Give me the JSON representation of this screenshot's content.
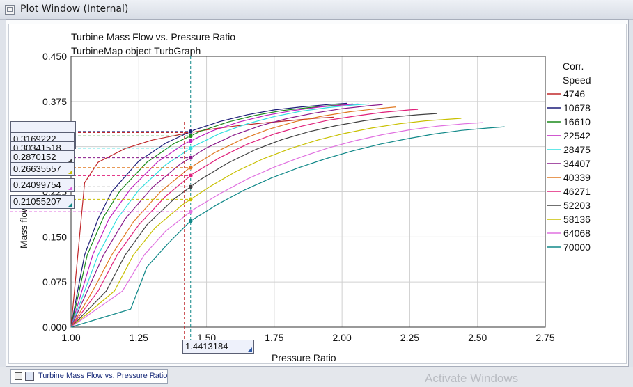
{
  "window": {
    "title": "Plot Window (Internal)"
  },
  "tab": {
    "label": "Turbine Mass Flow vs. Pressure Ratio"
  },
  "watermark": "Activate Windows",
  "legend": {
    "title_line1": "Corr.",
    "title_line2": "Speed"
  },
  "colors": {
    "frame_bg": "#fbfcfd",
    "plot_bg": "#ffffff",
    "grid": "#d0d0d0"
  },
  "cursor": {
    "x_readout": "1.4413184",
    "y_readouts": [
      {
        "text": "0.3169222",
        "color": "#b050d0"
      },
      {
        "text": "0.30341518",
        "color": "#444444"
      },
      {
        "text": "0.2870152",
        "color": "#444444"
      },
      {
        "text": "0.26635557",
        "color": "#c8c000"
      },
      {
        "text": "0.24099754",
        "color": "#e060e0"
      },
      {
        "text": "0.21055207",
        "color": "#108888"
      }
    ]
  },
  "chart_data": {
    "type": "line",
    "title": "Turbine Mass Flow vs. Pressure Ratio",
    "subtitle": "TurbineMap object TurbGraph",
    "xlabel": "Pressure Ratio",
    "ylabel": "Mass flow",
    "xlim": [
      1.0,
      2.75
    ],
    "ylim": [
      0.0,
      0.45
    ],
    "xticks": [
      "1.00",
      "1.25",
      "1.50",
      "1.75",
      "2.00",
      "2.25",
      "2.50",
      "2.75"
    ],
    "yticks": [
      "0.000",
      "0.075",
      "0.150",
      "0.225",
      "0.300",
      "0.375",
      "0.450"
    ],
    "grid": true,
    "legend_position": "right",
    "series": [
      {
        "name": "4746",
        "color": "#c0282a",
        "points": [
          [
            1.0,
            0.0
          ],
          [
            1.05,
            0.24
          ],
          [
            1.1,
            0.274
          ],
          [
            1.2,
            0.297
          ],
          [
            1.3,
            0.311
          ],
          [
            1.4,
            0.32
          ],
          [
            1.5,
            0.328
          ],
          [
            1.6,
            0.334
          ],
          [
            1.7,
            0.339
          ],
          [
            1.8,
            0.343
          ],
          [
            1.9,
            0.347
          ],
          [
            1.97,
            0.349
          ]
        ]
      },
      {
        "name": "10678",
        "color": "#1c1c78",
        "points": [
          [
            1.0,
            0.0
          ],
          [
            1.02,
            0.05
          ],
          [
            1.05,
            0.12
          ],
          [
            1.1,
            0.18
          ],
          [
            1.15,
            0.225
          ],
          [
            1.25,
            0.276
          ],
          [
            1.35,
            0.306
          ],
          [
            1.45,
            0.327
          ],
          [
            1.55,
            0.342
          ],
          [
            1.65,
            0.353
          ],
          [
            1.75,
            0.361
          ],
          [
            1.85,
            0.366
          ],
          [
            1.95,
            0.37
          ],
          [
            2.02,
            0.372
          ]
        ]
      },
      {
        "name": "16610",
        "color": "#1a8a1a",
        "points": [
          [
            1.0,
            0.0
          ],
          [
            1.03,
            0.06
          ],
          [
            1.06,
            0.12
          ],
          [
            1.12,
            0.183
          ],
          [
            1.18,
            0.226
          ],
          [
            1.28,
            0.274
          ],
          [
            1.38,
            0.305
          ],
          [
            1.48,
            0.326
          ],
          [
            1.58,
            0.341
          ],
          [
            1.68,
            0.352
          ],
          [
            1.78,
            0.36
          ],
          [
            1.88,
            0.365
          ],
          [
            1.98,
            0.369
          ],
          [
            2.04,
            0.371
          ]
        ]
      },
      {
        "name": "22542",
        "color": "#c020c0",
        "points": [
          [
            1.0,
            0.0
          ],
          [
            1.04,
            0.06
          ],
          [
            1.08,
            0.12
          ],
          [
            1.14,
            0.18
          ],
          [
            1.22,
            0.23
          ],
          [
            1.32,
            0.275
          ],
          [
            1.42,
            0.305
          ],
          [
            1.52,
            0.326
          ],
          [
            1.62,
            0.341
          ],
          [
            1.72,
            0.352
          ],
          [
            1.82,
            0.36
          ],
          [
            1.92,
            0.366
          ],
          [
            2.0,
            0.369
          ],
          [
            2.06,
            0.371
          ]
        ]
      },
      {
        "name": "28475",
        "color": "#30e0e0",
        "points": [
          [
            1.0,
            0.0
          ],
          [
            1.05,
            0.06
          ],
          [
            1.1,
            0.12
          ],
          [
            1.17,
            0.18
          ],
          [
            1.25,
            0.228
          ],
          [
            1.35,
            0.27
          ],
          [
            1.45,
            0.3
          ],
          [
            1.55,
            0.322
          ],
          [
            1.65,
            0.338
          ],
          [
            1.75,
            0.35
          ],
          [
            1.85,
            0.359
          ],
          [
            1.95,
            0.365
          ],
          [
            2.04,
            0.369
          ],
          [
            2.1,
            0.371
          ]
        ]
      },
      {
        "name": "34407",
        "color": "#8a1a8a",
        "points": [
          [
            1.0,
            0.0
          ],
          [
            1.06,
            0.06
          ],
          [
            1.12,
            0.12
          ],
          [
            1.2,
            0.18
          ],
          [
            1.3,
            0.232
          ],
          [
            1.4,
            0.27
          ],
          [
            1.5,
            0.298
          ],
          [
            1.6,
            0.319
          ],
          [
            1.7,
            0.335
          ],
          [
            1.8,
            0.347
          ],
          [
            1.9,
            0.356
          ],
          [
            2.0,
            0.363
          ],
          [
            2.1,
            0.368
          ],
          [
            2.15,
            0.37
          ]
        ]
      },
      {
        "name": "40339",
        "color": "#e07820",
        "points": [
          [
            1.0,
            0.0
          ],
          [
            1.08,
            0.06
          ],
          [
            1.15,
            0.12
          ],
          [
            1.23,
            0.175
          ],
          [
            1.33,
            0.225
          ],
          [
            1.43,
            0.262
          ],
          [
            1.53,
            0.29
          ],
          [
            1.63,
            0.312
          ],
          [
            1.73,
            0.329
          ],
          [
            1.83,
            0.342
          ],
          [
            1.93,
            0.351
          ],
          [
            2.03,
            0.358
          ],
          [
            2.13,
            0.363
          ],
          [
            2.2,
            0.366
          ]
        ]
      },
      {
        "name": "46271",
        "color": "#e0207a",
        "points": [
          [
            1.0,
            0.0
          ],
          [
            1.1,
            0.06
          ],
          [
            1.17,
            0.12
          ],
          [
            1.25,
            0.17
          ],
          [
            1.35,
            0.218
          ],
          [
            1.45,
            0.255
          ],
          [
            1.55,
            0.282
          ],
          [
            1.65,
            0.304
          ],
          [
            1.75,
            0.321
          ],
          [
            1.85,
            0.334
          ],
          [
            1.95,
            0.344
          ],
          [
            2.05,
            0.351
          ],
          [
            2.15,
            0.357
          ],
          [
            2.25,
            0.361
          ],
          [
            2.28,
            0.362
          ]
        ]
      },
      {
        "name": "52203",
        "color": "#404040",
        "points": [
          [
            1.0,
            0.0
          ],
          [
            1.13,
            0.06
          ],
          [
            1.2,
            0.12
          ],
          [
            1.28,
            0.17
          ],
          [
            1.38,
            0.213
          ],
          [
            1.48,
            0.246
          ],
          [
            1.58,
            0.273
          ],
          [
            1.68,
            0.295
          ],
          [
            1.78,
            0.312
          ],
          [
            1.88,
            0.325
          ],
          [
            1.98,
            0.335
          ],
          [
            2.08,
            0.343
          ],
          [
            2.18,
            0.349
          ],
          [
            2.28,
            0.353
          ],
          [
            2.35,
            0.355
          ]
        ]
      },
      {
        "name": "58136",
        "color": "#c8c000",
        "points": [
          [
            1.0,
            0.0
          ],
          [
            1.16,
            0.06
          ],
          [
            1.23,
            0.12
          ],
          [
            1.31,
            0.165
          ],
          [
            1.41,
            0.203
          ],
          [
            1.51,
            0.233
          ],
          [
            1.61,
            0.259
          ],
          [
            1.71,
            0.28
          ],
          [
            1.81,
            0.297
          ],
          [
            1.91,
            0.311
          ],
          [
            2.01,
            0.322
          ],
          [
            2.11,
            0.331
          ],
          [
            2.21,
            0.338
          ],
          [
            2.31,
            0.343
          ],
          [
            2.44,
            0.347
          ]
        ]
      },
      {
        "name": "64068",
        "color": "#e070e0",
        "points": [
          [
            1.0,
            0.0
          ],
          [
            1.19,
            0.06
          ],
          [
            1.27,
            0.12
          ],
          [
            1.35,
            0.16
          ],
          [
            1.45,
            0.195
          ],
          [
            1.55,
            0.222
          ],
          [
            1.65,
            0.246
          ],
          [
            1.75,
            0.266
          ],
          [
            1.85,
            0.283
          ],
          [
            1.95,
            0.298
          ],
          [
            2.05,
            0.31
          ],
          [
            2.15,
            0.32
          ],
          [
            2.25,
            0.328
          ],
          [
            2.35,
            0.334
          ],
          [
            2.45,
            0.338
          ],
          [
            2.52,
            0.34
          ]
        ]
      },
      {
        "name": "70000",
        "color": "#108888",
        "points": [
          [
            1.0,
            0.0
          ],
          [
            1.22,
            0.03
          ],
          [
            1.28,
            0.1
          ],
          [
            1.36,
            0.14
          ],
          [
            1.44,
            0.176
          ],
          [
            1.54,
            0.204
          ],
          [
            1.64,
            0.228
          ],
          [
            1.74,
            0.248
          ],
          [
            1.84,
            0.265
          ],
          [
            1.94,
            0.28
          ],
          [
            2.04,
            0.293
          ],
          [
            2.14,
            0.304
          ],
          [
            2.24,
            0.313
          ],
          [
            2.34,
            0.321
          ],
          [
            2.44,
            0.327
          ],
          [
            2.54,
            0.331
          ],
          [
            2.6,
            0.333
          ]
        ]
      }
    ]
  }
}
